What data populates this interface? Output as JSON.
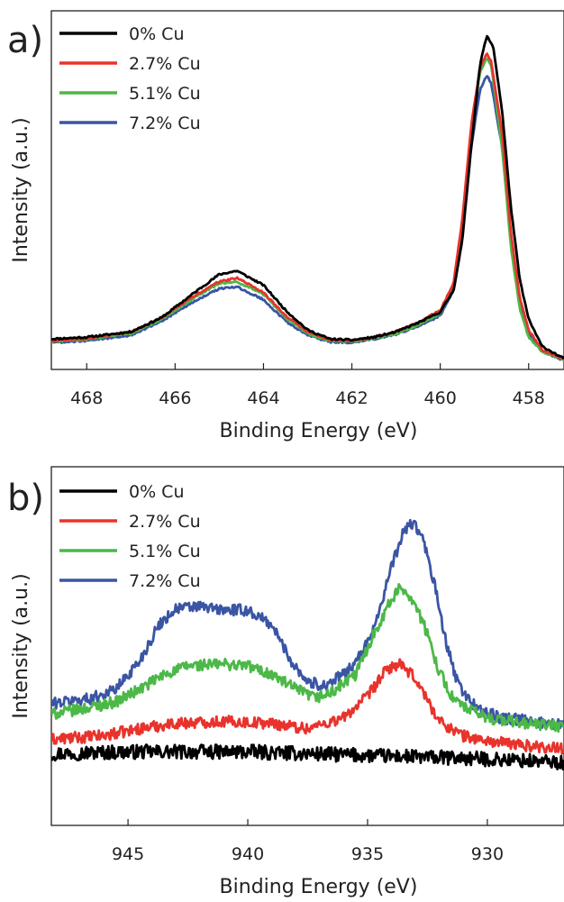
{
  "chart_data": [
    {
      "panel_label": "a)",
      "type": "line",
      "xlabel": "Binding Energy (eV)",
      "ylabel": "Intensity (a.u.)",
      "xlim": [
        468.8,
        457.2
      ],
      "ylim": [
        0,
        100
      ],
      "x_reversed": true,
      "y_ticks_shown": false,
      "x_ticks": [
        468,
        466,
        464,
        462,
        460,
        458
      ],
      "grid": false,
      "legend_placement": "top-left",
      "series": [
        {
          "name": "0% Cu",
          "color": "#000000",
          "noise": 0.25,
          "points": [
            [
              468.8,
              8.5
            ],
            [
              468,
              9
            ],
            [
              467,
              10.5
            ],
            [
              466.3,
              14.5
            ],
            [
              465.5,
              22
            ],
            [
              465,
              26.5
            ],
            [
              464.6,
              27.5
            ],
            [
              464,
              23.5
            ],
            [
              463.5,
              16.5
            ],
            [
              463,
              11
            ],
            [
              462.5,
              8.5
            ],
            [
              462,
              8.2
            ],
            [
              461.5,
              9
            ],
            [
              461,
              10.5
            ],
            [
              460.5,
              13
            ],
            [
              460,
              16
            ],
            [
              459.7,
              22
            ],
            [
              459.5,
              36
            ],
            [
              459.3,
              62
            ],
            [
              459.1,
              85
            ],
            [
              458.95,
              93
            ],
            [
              458.8,
              90
            ],
            [
              458.6,
              72
            ],
            [
              458.4,
              45
            ],
            [
              458.2,
              25
            ],
            [
              458,
              14
            ],
            [
              457.7,
              6.5
            ],
            [
              457.2,
              3
            ]
          ]
        },
        {
          "name": "2.7% Cu",
          "color": "#e8332c",
          "noise": 0.25,
          "points": [
            [
              468.8,
              8
            ],
            [
              468,
              8.6
            ],
            [
              467,
              10.5
            ],
            [
              466.3,
              14.5
            ],
            [
              465.5,
              21
            ],
            [
              465,
              24.5
            ],
            [
              464.6,
              25.5
            ],
            [
              464,
              21.5
            ],
            [
              463.5,
              15
            ],
            [
              463,
              10.5
            ],
            [
              462.5,
              8.3
            ],
            [
              462,
              8
            ],
            [
              461.5,
              9
            ],
            [
              461,
              10.5
            ],
            [
              460.5,
              13
            ],
            [
              460,
              16.5
            ],
            [
              459.7,
              24
            ],
            [
              459.5,
              42
            ],
            [
              459.3,
              68
            ],
            [
              459.1,
              84
            ],
            [
              458.95,
              88
            ],
            [
              458.85,
              86
            ],
            [
              458.6,
              66
            ],
            [
              458.4,
              38
            ],
            [
              458.2,
              20
            ],
            [
              458,
              11
            ],
            [
              457.7,
              5.5
            ],
            [
              457.2,
              2.8
            ]
          ]
        },
        {
          "name": "5.1% Cu",
          "color": "#4cb848",
          "noise": 0.25,
          "points": [
            [
              468.8,
              7.8
            ],
            [
              468,
              8.4
            ],
            [
              467,
              10
            ],
            [
              466.3,
              14
            ],
            [
              465.5,
              20.5
            ],
            [
              465,
              24
            ],
            [
              464.6,
              24.5
            ],
            [
              464,
              21
            ],
            [
              463.5,
              14.5
            ],
            [
              463,
              10
            ],
            [
              462.5,
              8
            ],
            [
              462,
              7.8
            ],
            [
              461.5,
              8.7
            ],
            [
              461,
              10
            ],
            [
              460.5,
              12.5
            ],
            [
              460,
              15.5
            ],
            [
              459.7,
              23
            ],
            [
              459.5,
              40
            ],
            [
              459.3,
              66
            ],
            [
              459.1,
              83
            ],
            [
              458.95,
              87
            ],
            [
              458.85,
              85
            ],
            [
              458.6,
              62
            ],
            [
              458.4,
              34
            ],
            [
              458.2,
              17
            ],
            [
              458,
              9
            ],
            [
              457.7,
              5
            ],
            [
              457.2,
              2.6
            ]
          ]
        },
        {
          "name": "7.2% Cu",
          "color": "#3a55a4",
          "noise": 0.25,
          "points": [
            [
              468.8,
              7.5
            ],
            [
              468,
              8
            ],
            [
              467,
              9.5
            ],
            [
              466.3,
              13.5
            ],
            [
              465.5,
              19.5
            ],
            [
              465,
              22.5
            ],
            [
              464.6,
              23
            ],
            [
              464,
              19.5
            ],
            [
              463.5,
              13.5
            ],
            [
              463,
              9.5
            ],
            [
              462.5,
              7.7
            ],
            [
              462,
              7.5
            ],
            [
              461.5,
              8.4
            ],
            [
              461,
              9.8
            ],
            [
              460.5,
              12
            ],
            [
              460,
              15
            ],
            [
              459.7,
              22
            ],
            [
              459.5,
              38
            ],
            [
              459.3,
              62
            ],
            [
              459.1,
              78
            ],
            [
              458.95,
              82
            ],
            [
              458.85,
              80
            ],
            [
              458.6,
              62
            ],
            [
              458.4,
              36
            ],
            [
              458.2,
              18
            ],
            [
              458,
              10
            ],
            [
              457.7,
              5
            ],
            [
              457.2,
              2.5
            ]
          ]
        }
      ]
    },
    {
      "panel_label": "b)",
      "type": "line",
      "xlabel": "Binding Energy (eV)",
      "ylabel": "Intensity (a.u.)",
      "xlim": [
        948.2,
        926.8
      ],
      "ylim": [
        0,
        100
      ],
      "x_reversed": true,
      "y_ticks_shown": false,
      "x_ticks": [
        945,
        940,
        935,
        930
      ],
      "grid": false,
      "legend_placement": "top-left",
      "series": [
        {
          "name": "0% Cu",
          "color": "#000000",
          "noise": 2.0,
          "points": [
            [
              948.2,
              20
            ],
            [
              945,
              20.5
            ],
            [
              940,
              20.5
            ],
            [
              935,
              19.5
            ],
            [
              930,
              18.5
            ],
            [
              926.8,
              17.5
            ]
          ]
        },
        {
          "name": "2.7% Cu",
          "color": "#e8332c",
          "noise": 1.6,
          "points": [
            [
              948.2,
              24
            ],
            [
              946,
              25
            ],
            [
              944.5,
              27
            ],
            [
              943,
              28.5
            ],
            [
              941,
              29
            ],
            [
              939,
              28.5
            ],
            [
              937.5,
              27
            ],
            [
              936,
              30
            ],
            [
              935,
              36
            ],
            [
              934.2,
              43.5
            ],
            [
              933.7,
              45
            ],
            [
              933,
              41
            ],
            [
              932.5,
              35
            ],
            [
              932,
              29
            ],
            [
              931,
              25
            ],
            [
              930,
              23.5
            ],
            [
              928,
              22
            ],
            [
              926.8,
              21.5
            ]
          ]
        },
        {
          "name": "5.1% Cu",
          "color": "#4cb848",
          "noise": 1.6,
          "points": [
            [
              948.2,
              31
            ],
            [
              946.5,
              33
            ],
            [
              945.5,
              34.5
            ],
            [
              944.5,
              38
            ],
            [
              943.5,
              42
            ],
            [
              942.5,
              44.5
            ],
            [
              941,
              45
            ],
            [
              940,
              44.5
            ],
            [
              939,
              42
            ],
            [
              938,
              38
            ],
            [
              937.2,
              35.5
            ],
            [
              936.5,
              37
            ],
            [
              935.5,
              42
            ],
            [
              934.7,
              54
            ],
            [
              934,
              63
            ],
            [
              933.6,
              66.5
            ],
            [
              933.1,
              63
            ],
            [
              932.6,
              55
            ],
            [
              932,
              43
            ],
            [
              931.5,
              36
            ],
            [
              931,
              33
            ],
            [
              930,
              30
            ],
            [
              928.5,
              28.5
            ],
            [
              926.8,
              27.5
            ]
          ]
        },
        {
          "name": "7.2% Cu",
          "color": "#3a55a4",
          "noise": 1.6,
          "points": [
            [
              948.2,
              34
            ],
            [
              946.5,
              35.5
            ],
            [
              945.5,
              38
            ],
            [
              944.5,
              46
            ],
            [
              943.7,
              56
            ],
            [
              943,
              60.5
            ],
            [
              942,
              61
            ],
            [
              941,
              60
            ],
            [
              940,
              60
            ],
            [
              939,
              56
            ],
            [
              938.2,
              46
            ],
            [
              937.5,
              40
            ],
            [
              936.8,
              39
            ],
            [
              936,
              42
            ],
            [
              935.2,
              48
            ],
            [
              934.6,
              58
            ],
            [
              934,
              72
            ],
            [
              933.5,
              82
            ],
            [
              933.1,
              84.5
            ],
            [
              932.7,
              80
            ],
            [
              932.2,
              67
            ],
            [
              931.7,
              50
            ],
            [
              931.2,
              39
            ],
            [
              930.5,
              33
            ],
            [
              929.5,
              30
            ],
            [
              928,
              29
            ],
            [
              926.8,
              28
            ]
          ]
        }
      ]
    }
  ]
}
